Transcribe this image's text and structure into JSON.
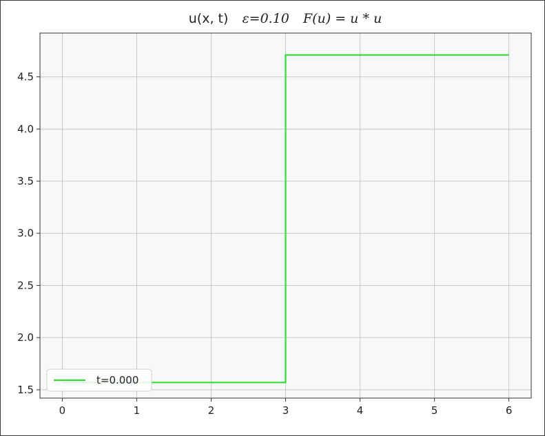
{
  "chart_data": {
    "type": "line",
    "title": {
      "prefix": "u(x, t)",
      "epsilon_label": "ε=0.10",
      "flux_label": "F(u) = u * u"
    },
    "xlabel": "",
    "ylabel": "",
    "xlim": [
      -0.3,
      6.3
    ],
    "ylim": [
      1.42,
      4.92
    ],
    "x_ticks": [
      0,
      1,
      2,
      3,
      4,
      5,
      6
    ],
    "x_tick_labels": [
      "0",
      "1",
      "2",
      "3",
      "4",
      "5",
      "6"
    ],
    "y_ticks": [
      1.5,
      2.0,
      2.5,
      3.0,
      3.5,
      4.0,
      4.5
    ],
    "y_tick_labels": [
      "1.5",
      "2.0",
      "2.5",
      "3.0",
      "3.5",
      "4.0",
      "4.5"
    ],
    "grid": true,
    "legend_position": "lower-left",
    "series": [
      {
        "name": "t=0.000",
        "color": "#33dd33",
        "x": [
          0,
          3,
          3,
          6
        ],
        "y": [
          1.57,
          1.57,
          4.71,
          4.71
        ]
      }
    ]
  },
  "colors": {
    "plot_background": "#f7f8fa",
    "grid": "#c8c8c8",
    "axes": "#333333"
  }
}
